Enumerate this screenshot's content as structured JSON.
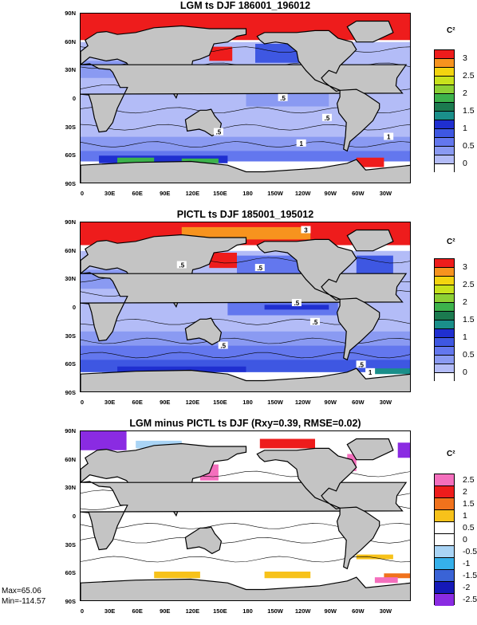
{
  "chart_data": [
    {
      "type": "heatmap",
      "title": "LGM ts DJF 186001_196012",
      "units": "C²",
      "xlim": [
        0,
        360
      ],
      "ylim": [
        -90,
        90
      ],
      "lat_ticks": [
        "90N",
        "60N",
        "30N",
        "0",
        "30S",
        "60S",
        "90S"
      ],
      "lon_ticks": [
        "0",
        "30E",
        "60E",
        "90E",
        "120E",
        "150E",
        "180",
        "150W",
        "120W",
        "90W",
        "60W",
        "30W"
      ],
      "colorbar_labels": [
        "3",
        "2.5",
        "2",
        "1.5",
        "1",
        "0.5",
        "0"
      ],
      "colorbar_colors": [
        "#ee1c1c",
        "#f7931e",
        "#f3d40f",
        "#c8e21c",
        "#8cd035",
        "#3cb24c",
        "#1b7a4f",
        "#1a8f8a",
        "#1f2fd0",
        "#3e57e2",
        "#6377ee",
        "#8a9af2",
        "#b3bcf7",
        "#ffffff"
      ],
      "contour_labels": [
        ".5",
        ".5",
        ".5",
        "1",
        "1"
      ]
    },
    {
      "type": "heatmap",
      "title": "PICTL ts DJF 185001_195012",
      "units": "C²",
      "xlim": [
        0,
        360
      ],
      "ylim": [
        -90,
        90
      ],
      "lat_ticks": [
        "90N",
        "60N",
        "30N",
        "0",
        "30S",
        "60S",
        "90S"
      ],
      "lon_ticks": [
        "0",
        "30E",
        "60E",
        "90E",
        "120E",
        "150E",
        "180",
        "150W",
        "120W",
        "90W",
        "60W",
        "30W"
      ],
      "colorbar_labels": [
        "3",
        "2.5",
        "2",
        "1.5",
        "1",
        "0.5",
        "0"
      ],
      "colorbar_colors": [
        "#ee1c1c",
        "#f7931e",
        "#f3d40f",
        "#c8e21c",
        "#8cd035",
        "#3cb24c",
        "#1b7a4f",
        "#1a8f8a",
        "#1f2fd0",
        "#3e57e2",
        "#6377ee",
        "#8a9af2",
        "#b3bcf7",
        "#ffffff"
      ],
      "contour_labels": [
        "3",
        ".5",
        ".5",
        ".5",
        ".5",
        ".5",
        ".5",
        "1"
      ]
    },
    {
      "type": "heatmap",
      "title": "LGM minus PICTL ts DJF (Rxy=0.39, RMSE=0.02)",
      "units": "C²",
      "xlim": [
        0,
        360
      ],
      "ylim": [
        -90,
        90
      ],
      "lat_ticks": [
        "90N",
        "60N",
        "30N",
        "0",
        "30S",
        "60S",
        "90S"
      ],
      "lon_ticks": [
        "0",
        "30E",
        "60E",
        "90E",
        "120E",
        "150E",
        "180",
        "150W",
        "120W",
        "90W",
        "60W",
        "30W"
      ],
      "colorbar_labels": [
        "2.5",
        "2",
        "1.5",
        "1",
        "0.5",
        "0",
        "-0.5",
        "-1",
        "-1.5",
        "-2",
        "-2.5"
      ],
      "colorbar_colors": [
        "#f46fbd",
        "#ee1c1c",
        "#f0721c",
        "#f7c21a",
        "#ffffff",
        "#ffffff",
        "#a9d4f5",
        "#35b0ea",
        "#3a63d6",
        "#1519b8",
        "#8a2be2"
      ],
      "stats": {
        "max": "Max=65.06",
        "min": "Min=-114.57"
      }
    }
  ]
}
